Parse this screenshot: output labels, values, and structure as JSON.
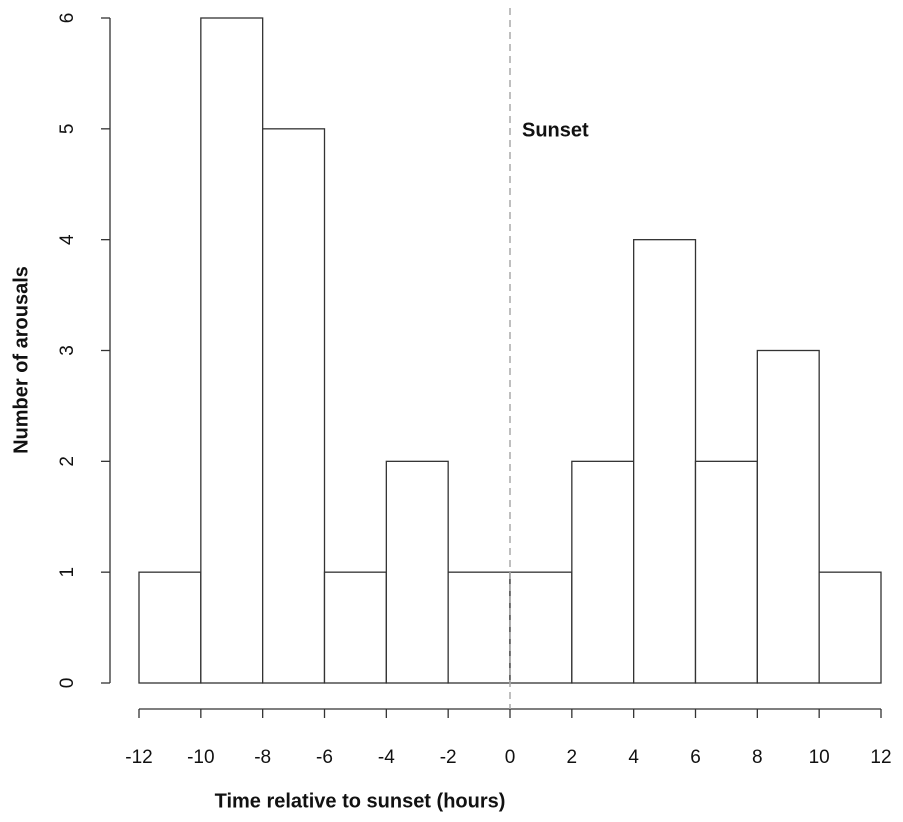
{
  "chart_data": {
    "type": "histogram",
    "xlabel": "Time relative to sunset (hours)",
    "ylabel": "Number of arousals",
    "bins": [
      -12,
      -10,
      -8,
      -6,
      -4,
      -2,
      0,
      2,
      4,
      6,
      8,
      10,
      12
    ],
    "values": [
      1,
      6,
      5,
      1,
      2,
      1,
      1,
      2,
      4,
      2,
      3,
      1
    ],
    "color": "#ffffff",
    "xlim": [
      -12,
      12
    ],
    "xticks": [
      -12,
      -10,
      -8,
      -6,
      -4,
      -2,
      0,
      2,
      4,
      6,
      8,
      10,
      12
    ],
    "ylim": [
      0,
      6
    ],
    "yticks": [
      0,
      1,
      2,
      3,
      4,
      5,
      6
    ],
    "vline": 0,
    "annotation": "Sunset"
  }
}
